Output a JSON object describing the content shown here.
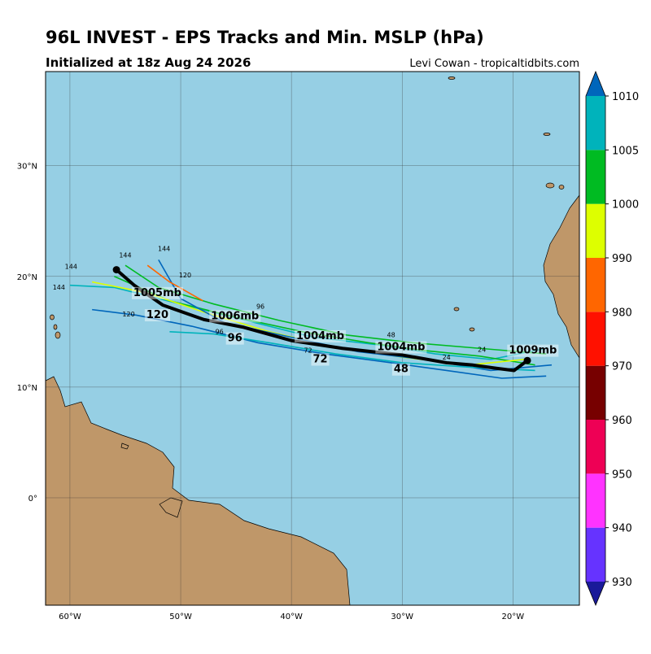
{
  "chart_data": {
    "type": "map",
    "title": "96L INVEST - EPS Tracks and Min. MSLP (hPa)",
    "subtitle": "Initialized at 18z Aug 24 2026",
    "credit": "Levi Cowan - tropicaltidbits.com",
    "xlim": [
      -62.2,
      -14.0
    ],
    "ylim": [
      -9.7,
      38.5
    ],
    "xticks": [
      {
        "value": -60,
        "label": "60°W"
      },
      {
        "value": -50,
        "label": "50°W"
      },
      {
        "value": -40,
        "label": "40°W"
      },
      {
        "value": -30,
        "label": "30°W"
      },
      {
        "value": -20,
        "label": "20°W"
      }
    ],
    "yticks": [
      {
        "value": 0,
        "label": "0°"
      },
      {
        "value": 10,
        "label": "10°N"
      },
      {
        "value": 20,
        "label": "20°N"
      },
      {
        "value": 30,
        "label": "30°N"
      }
    ],
    "grid": true,
    "mean_track": {
      "color": "#000000",
      "lon": [
        -18.7,
        -19.9,
        -21.5,
        -23.7,
        -26.0,
        -30.0,
        -35.4,
        -40.0,
        -44.3,
        -47.9,
        -51.6,
        -54.2,
        -55.8
      ],
      "lat": [
        12.4,
        11.5,
        11.7,
        12.0,
        12.2,
        12.9,
        13.5,
        14.2,
        15.4,
        16.1,
        17.4,
        19.2,
        20.6
      ]
    },
    "mean_labels": [
      {
        "label": "1009mb",
        "lon": -18.2,
        "lat": 13.4
      },
      {
        "label": "1004mb",
        "lon": -30.1,
        "lat": 13.7
      },
      {
        "label": "1004mb",
        "lon": -37.4,
        "lat": 14.7
      },
      {
        "label": "1006mb",
        "lon": -45.1,
        "lat": 16.5
      },
      {
        "label": "1005mb",
        "lon": -52.1,
        "lat": 18.6
      },
      {
        "label": "48",
        "lon": -30.1,
        "lat": 11.7
      },
      {
        "label": "72",
        "lon": -37.4,
        "lat": 12.6
      },
      {
        "label": "96",
        "lon": -45.1,
        "lat": 14.5
      },
      {
        "label": "120",
        "lon": -52.1,
        "lat": 16.6
      }
    ],
    "members": [
      {
        "color": "#00b3bb",
        "lon": [
          -17,
          -22,
          -27,
          -32,
          -38,
          -44,
          -50,
          -56,
          -60
        ],
        "lat": [
          13.5,
          12.5,
          13,
          13.8,
          14.5,
          16,
          17.5,
          19,
          19.2
        ]
      },
      {
        "color": "#0066bb",
        "lon": [
          -17,
          -21,
          -26,
          -31,
          -37,
          -43,
          -49,
          -54,
          -58
        ],
        "lat": [
          11,
          10.8,
          11.5,
          12.2,
          13,
          14,
          15.5,
          16.5,
          17
        ]
      },
      {
        "color": "#00bb22",
        "lon": [
          -18,
          -23,
          -28,
          -33,
          -39,
          -45,
          -51,
          -56
        ],
        "lat": [
          12,
          12.8,
          13.3,
          14,
          15,
          16.3,
          17.8,
          20
        ]
      },
      {
        "color": "#ddff00",
        "lon": [
          -19,
          -24,
          -30,
          -36,
          -42,
          -48,
          -53,
          -58
        ],
        "lat": [
          12.5,
          12,
          12.7,
          13.6,
          15,
          16.8,
          18.5,
          19.5
        ]
      },
      {
        "color": "#0066bb",
        "lon": [
          -16.5,
          -22,
          -28,
          -34,
          -40,
          -46,
          -50,
          -52
        ],
        "lat": [
          12,
          11.5,
          12.5,
          13.2,
          14.5,
          15.8,
          18,
          21.5
        ]
      },
      {
        "color": "#00b3bb",
        "lon": [
          -18,
          -24,
          -30,
          -36,
          -42,
          -47,
          -51
        ],
        "lat": [
          11.5,
          11.8,
          12.2,
          13,
          14,
          14.8,
          15
        ]
      },
      {
        "color": "#00bb22",
        "lon": [
          -17,
          -23,
          -29,
          -35,
          -41,
          -47,
          -52,
          -55
        ],
        "lat": [
          13,
          13.5,
          14,
          14.7,
          16,
          17.5,
          19,
          21
        ]
      },
      {
        "color": "#ff6600",
        "lon": [
          -48,
          -51,
          -53
        ],
        "lat": [
          17.8,
          19.5,
          21
        ]
      }
    ],
    "member_labels": [
      {
        "label": "144",
        "lon": -59.9,
        "lat": 20.7
      },
      {
        "label": "144",
        "lon": -55.0,
        "lat": 21.7
      },
      {
        "label": "144",
        "lon": -51.5,
        "lat": 22.3
      },
      {
        "label": "144",
        "lon": -61.0,
        "lat": 18.8
      },
      {
        "label": "120",
        "lon": -49.6,
        "lat": 19.9
      },
      {
        "label": "120",
        "lon": -54.7,
        "lat": 16.4
      },
      {
        "label": "96",
        "lon": -42.8,
        "lat": 17.1
      },
      {
        "label": "96",
        "lon": -46.5,
        "lat": 14.8
      },
      {
        "label": "72",
        "lon": -38.5,
        "lat": 13.1
      },
      {
        "label": "48",
        "lon": -31.0,
        "lat": 14.5
      },
      {
        "label": "24",
        "lon": -26.0,
        "lat": 12.5
      },
      {
        "label": "24",
        "lon": -22.8,
        "lat": 13.2
      }
    ],
    "colorbar": {
      "ticks": [
        930,
        940,
        950,
        960,
        970,
        980,
        990,
        1000,
        1005,
        1010
      ],
      "colors": [
        "#6633ff",
        "#ff33ff",
        "#ee0055",
        "#770000",
        "#ff1100",
        "#ff6600",
        "#ddff00",
        "#00bb22",
        "#00b3bb"
      ],
      "under": "#1a1a99",
      "over": "#0066bb"
    },
    "colors": {
      "ocean": "#96cfe4",
      "land": "#bf9769"
    }
  }
}
